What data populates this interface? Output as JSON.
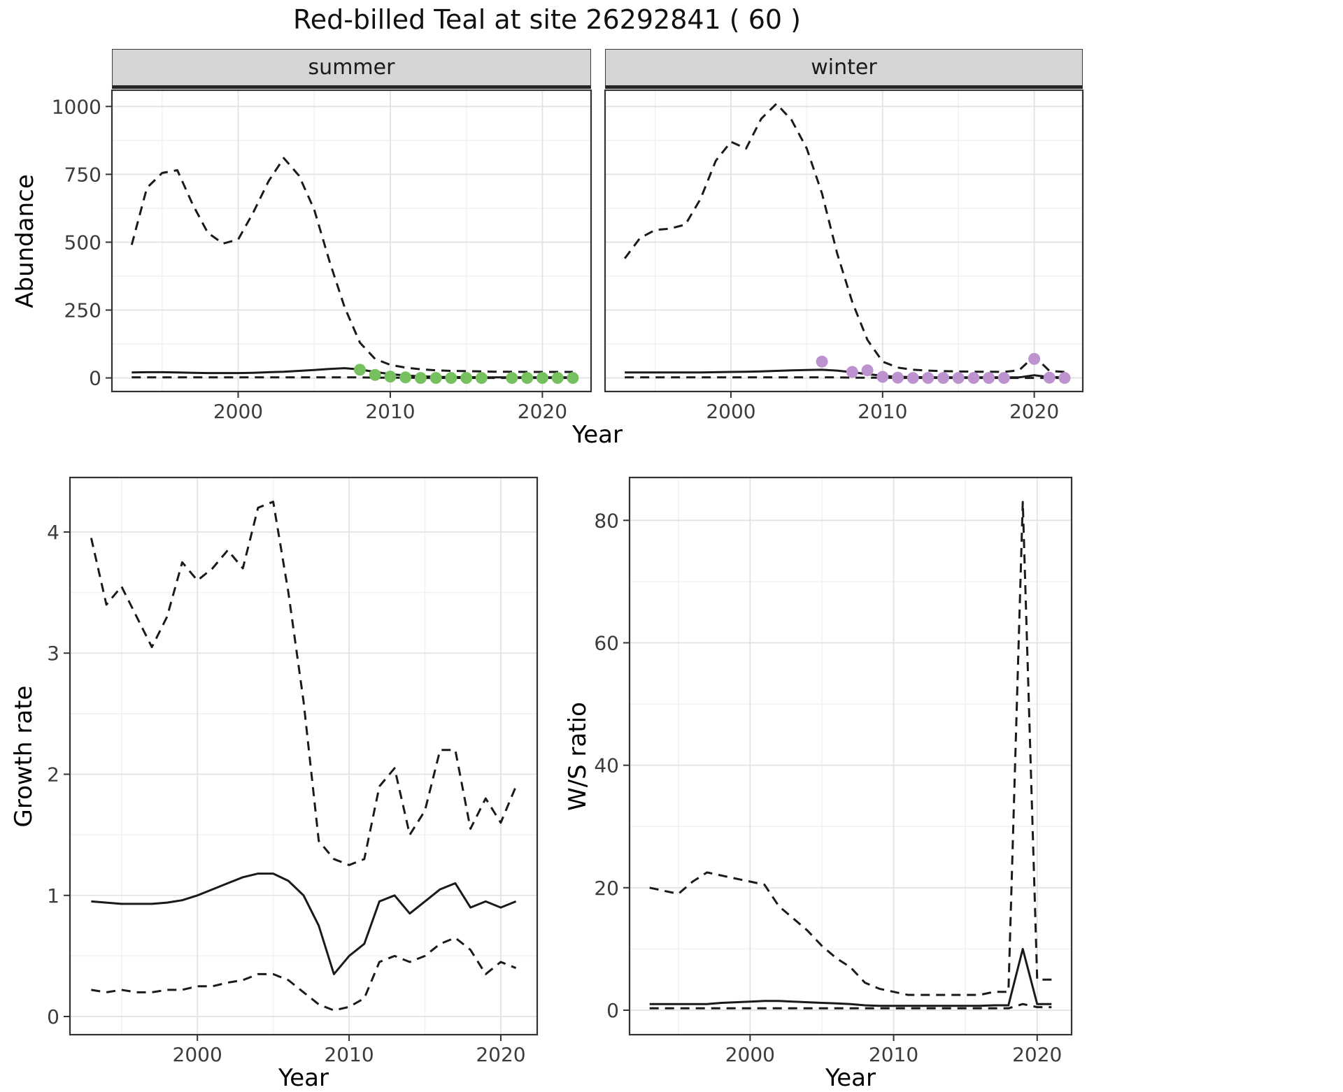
{
  "title": "Red-billed Teal at site 26292841 ( 60 )",
  "colors": {
    "line": "#1a1a1a",
    "summer_points": "#77c05f",
    "winter_points": "#bd93cf",
    "grid_major": "#e3e3e3",
    "grid_minor": "#f2f2f2",
    "panel_border": "#333333",
    "tick_text": "#3c3c3c"
  },
  "chart_data": [
    {
      "id": "abundance-summer",
      "type": "line",
      "facet_label": "summer",
      "ylabel": "Abundance",
      "xlabel": "Year",
      "xlim": [
        1991.7,
        2023.2
      ],
      "ylim": [
        -50,
        1060
      ],
      "xticks": [
        2000,
        2010,
        2020
      ],
      "yticks": [
        0,
        250,
        500,
        750,
        1000
      ],
      "x_minor": [
        1995,
        2005,
        2015
      ],
      "y_minor": [
        125,
        375,
        625,
        875
      ],
      "x": [
        1993,
        1994,
        1995,
        1996,
        1997,
        1998,
        1999,
        2000,
        2001,
        2002,
        2003,
        2004,
        2005,
        2006,
        2007,
        2008,
        2009,
        2010,
        2011,
        2012,
        2013,
        2014,
        2015,
        2016,
        2017,
        2018,
        2019,
        2020,
        2021,
        2022
      ],
      "series": [
        {
          "name": "upper-ci",
          "style": "dashed",
          "values": [
            490,
            700,
            755,
            765,
            640,
            535,
            495,
            510,
            610,
            725,
            810,
            745,
            620,
            430,
            260,
            130,
            70,
            48,
            38,
            32,
            28,
            26,
            25,
            24,
            23,
            23,
            22,
            22,
            22,
            22
          ]
        },
        {
          "name": "median",
          "style": "solid",
          "values": [
            20,
            21,
            21,
            20,
            19,
            18,
            18,
            18,
            19,
            21,
            23,
            26,
            29,
            33,
            36,
            31,
            22,
            14,
            9,
            6,
            4,
            3,
            3,
            2,
            2,
            2,
            2,
            2,
            2,
            2
          ]
        },
        {
          "name": "lower-ci",
          "style": "dashed",
          "values": [
            2,
            2,
            2,
            2,
            2,
            2,
            2,
            2,
            2,
            2,
            2,
            2,
            2,
            2,
            2,
            2,
            1,
            1,
            1,
            0,
            0,
            0,
            0,
            0,
            0,
            0,
            0,
            0,
            0,
            0
          ]
        }
      ],
      "points": {
        "name": "observed-counts-summer",
        "color": "#77c05f",
        "x": [
          2008,
          2009,
          2010,
          2011,
          2012,
          2013,
          2014,
          2015,
          2016,
          2018,
          2019,
          2020,
          2021,
          2022
        ],
        "y": [
          30,
          11,
          5,
          2,
          0,
          0,
          0,
          0,
          0,
          0,
          0,
          0,
          0,
          0
        ]
      }
    },
    {
      "id": "abundance-winter",
      "type": "line",
      "facet_label": "winter",
      "ylabel": "Abundance",
      "xlabel": "Year",
      "xlim": [
        1991.7,
        2023.2
      ],
      "ylim": [
        -50,
        1060
      ],
      "xticks": [
        2000,
        2010,
        2020
      ],
      "yticks": [
        0,
        250,
        500,
        750,
        1000
      ],
      "x_minor": [
        1995,
        2005,
        2015
      ],
      "y_minor": [
        125,
        375,
        625,
        875
      ],
      "x": [
        1993,
        1994,
        1995,
        1996,
        1997,
        1998,
        1999,
        2000,
        2001,
        2002,
        2003,
        2004,
        2005,
        2006,
        2007,
        2008,
        2009,
        2010,
        2011,
        2012,
        2013,
        2014,
        2015,
        2016,
        2017,
        2018,
        2019,
        2020,
        2021,
        2022
      ],
      "series": [
        {
          "name": "upper-ci",
          "style": "dashed",
          "values": [
            440,
            515,
            545,
            550,
            565,
            660,
            800,
            870,
            845,
            955,
            1010,
            950,
            845,
            680,
            460,
            280,
            140,
            60,
            38,
            30,
            27,
            25,
            24,
            23,
            23,
            22,
            28,
            80,
            26,
            22
          ]
        },
        {
          "name": "median",
          "style": "solid",
          "values": [
            20,
            20,
            20,
            20,
            20,
            20,
            21,
            22,
            23,
            24,
            26,
            28,
            29,
            30,
            27,
            21,
            14,
            8,
            4,
            3,
            2,
            2,
            2,
            2,
            2,
            2,
            2,
            10,
            3,
            2
          ]
        },
        {
          "name": "lower-ci",
          "style": "dashed",
          "values": [
            2,
            2,
            2,
            2,
            2,
            2,
            2,
            2,
            2,
            2,
            2,
            2,
            2,
            2,
            2,
            1,
            1,
            1,
            0,
            0,
            0,
            0,
            0,
            0,
            0,
            0,
            0,
            0,
            0,
            0
          ]
        }
      ],
      "points": {
        "name": "observed-counts-winter",
        "color": "#bd93cf",
        "x": [
          2006,
          2008,
          2009,
          2010,
          2011,
          2012,
          2013,
          2014,
          2015,
          2016,
          2017,
          2018,
          2020,
          2021,
          2022
        ],
        "y": [
          60,
          22,
          28,
          4,
          1,
          0,
          0,
          0,
          0,
          0,
          0,
          0,
          70,
          1,
          0
        ]
      }
    },
    {
      "id": "growth-rate",
      "type": "line",
      "facet_label": "",
      "ylabel": "Growth rate",
      "xlabel": "Year",
      "xlim": [
        1991.6,
        2022.4
      ],
      "ylim": [
        -0.15,
        4.45
      ],
      "xticks": [
        2000,
        2010,
        2020
      ],
      "yticks": [
        0,
        1,
        2,
        3,
        4
      ],
      "x_minor": [
        1995,
        2005,
        2015
      ],
      "y_minor": [
        0.5,
        1.5,
        2.5,
        3.5
      ],
      "x": [
        1993,
        1994,
        1995,
        1996,
        1997,
        1998,
        1999,
        2000,
        2001,
        2002,
        2003,
        2004,
        2005,
        2006,
        2007,
        2008,
        2009,
        2010,
        2011,
        2012,
        2013,
        2014,
        2015,
        2016,
        2017,
        2018,
        2019,
        2020,
        2021
      ],
      "series": [
        {
          "name": "upper-ci",
          "style": "dashed",
          "values": [
            3.95,
            3.4,
            3.55,
            3.3,
            3.05,
            3.3,
            3.75,
            3.6,
            3.7,
            3.85,
            3.7,
            4.2,
            4.25,
            3.5,
            2.6,
            1.45,
            1.3,
            1.25,
            1.3,
            1.9,
            2.05,
            1.5,
            1.7,
            2.2,
            2.2,
            1.55,
            1.8,
            1.6,
            1.9
          ]
        },
        {
          "name": "median",
          "style": "solid",
          "values": [
            0.95,
            0.94,
            0.93,
            0.93,
            0.93,
            0.94,
            0.96,
            1.0,
            1.05,
            1.1,
            1.15,
            1.18,
            1.18,
            1.12,
            1.0,
            0.75,
            0.35,
            0.5,
            0.6,
            0.95,
            1.0,
            0.85,
            0.95,
            1.05,
            1.1,
            0.9,
            0.95,
            0.9,
            0.95
          ]
        },
        {
          "name": "lower-ci",
          "style": "dashed",
          "values": [
            0.22,
            0.2,
            0.22,
            0.2,
            0.2,
            0.22,
            0.22,
            0.25,
            0.25,
            0.28,
            0.3,
            0.35,
            0.35,
            0.3,
            0.2,
            0.1,
            0.05,
            0.08,
            0.15,
            0.45,
            0.5,
            0.45,
            0.5,
            0.6,
            0.65,
            0.55,
            0.35,
            0.45,
            0.4
          ]
        }
      ]
    },
    {
      "id": "ws-ratio",
      "type": "line",
      "facet_label": "",
      "ylabel": "W/S ratio",
      "xlabel": "Year",
      "xlim": [
        1991.6,
        2022.4
      ],
      "ylim": [
        -4,
        87
      ],
      "xticks": [
        2000,
        2010,
        2020
      ],
      "yticks": [
        0,
        20,
        40,
        60,
        80
      ],
      "x_minor": [
        1995,
        2005,
        2015
      ],
      "y_minor": [
        10,
        30,
        50,
        70
      ],
      "x": [
        1993,
        1994,
        1995,
        1996,
        1997,
        1998,
        1999,
        2000,
        2001,
        2002,
        2003,
        2004,
        2005,
        2006,
        2007,
        2008,
        2009,
        2010,
        2011,
        2012,
        2013,
        2014,
        2015,
        2016,
        2017,
        2018,
        2019,
        2020,
        2021
      ],
      "series": [
        {
          "name": "upper-ci",
          "style": "dashed",
          "values": [
            20,
            19.5,
            19,
            21,
            22.5,
            22,
            21.5,
            21,
            20.5,
            17,
            15,
            13,
            10.5,
            8.5,
            7,
            4.5,
            3.5,
            3,
            2.5,
            2.5,
            2.5,
            2.5,
            2.5,
            2.5,
            3,
            3,
            83,
            5,
            5
          ]
        },
        {
          "name": "median",
          "style": "solid",
          "values": [
            1,
            1,
            1,
            1,
            1,
            1.2,
            1.3,
            1.4,
            1.5,
            1.5,
            1.4,
            1.3,
            1.2,
            1.1,
            1,
            0.8,
            0.7,
            0.7,
            0.7,
            0.7,
            0.7,
            0.7,
            0.7,
            0.7,
            0.8,
            0.8,
            10,
            1,
            1
          ]
        },
        {
          "name": "lower-ci",
          "style": "dashed",
          "values": [
            0.3,
            0.3,
            0.3,
            0.3,
            0.3,
            0.3,
            0.3,
            0.3,
            0.3,
            0.3,
            0.3,
            0.3,
            0.3,
            0.3,
            0.3,
            0.3,
            0.3,
            0.3,
            0.3,
            0.3,
            0.3,
            0.3,
            0.3,
            0.3,
            0.3,
            0.3,
            1.0,
            0.5,
            0.5
          ]
        }
      ]
    }
  ]
}
